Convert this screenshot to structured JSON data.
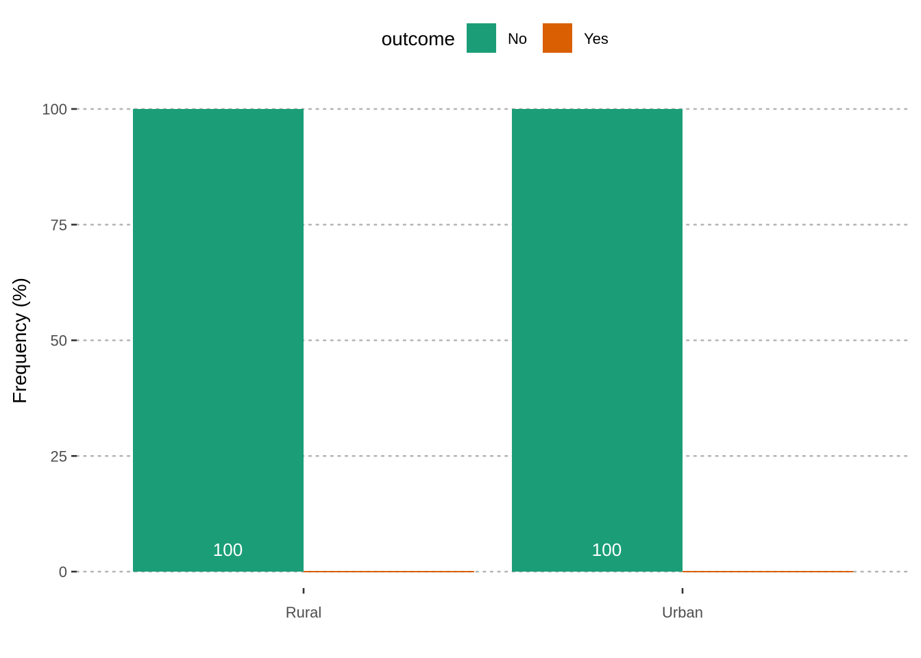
{
  "chart_data": {
    "type": "bar",
    "categories": [
      "Rural",
      "Urban"
    ],
    "series": [
      {
        "name": "No",
        "values": [
          100,
          100
        ],
        "color": "#1B9E77"
      },
      {
        "name": "Yes",
        "values": [
          0,
          0
        ],
        "color": "#D95F02"
      }
    ],
    "data_labels": [
      "100",
      "100"
    ],
    "xlabel": "",
    "ylabel": "Frequency (%)",
    "ylim": [
      0,
      100
    ],
    "yticks": [
      0,
      25,
      50,
      75,
      100
    ],
    "grid": true,
    "grid_style": "dotted",
    "legend": {
      "title": "outcome",
      "position": "top",
      "entries": [
        "No",
        "Yes"
      ]
    }
  }
}
